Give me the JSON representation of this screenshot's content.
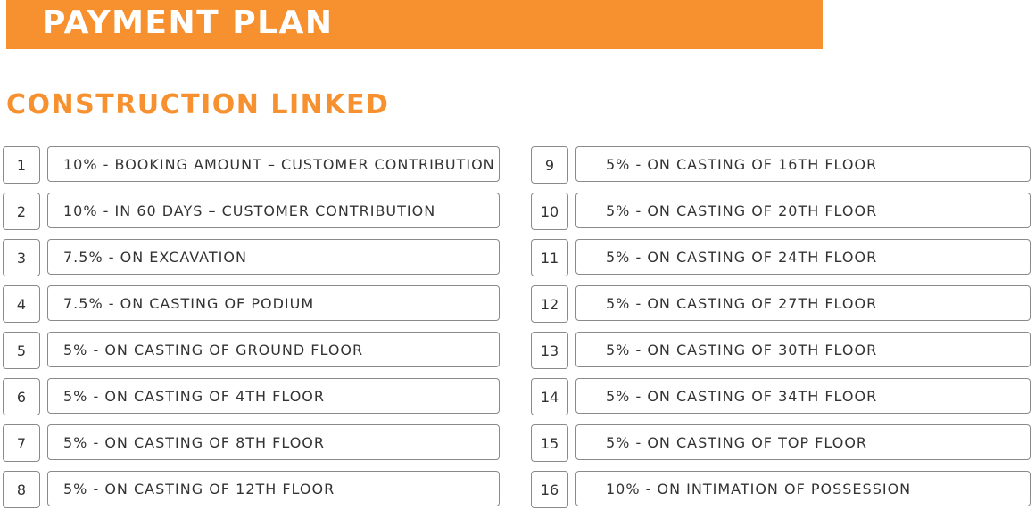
{
  "header": {
    "title": "PAYMENT PLAN",
    "subtitle": "CONSTRUCTION LINKED"
  },
  "colors": {
    "accent": "#f7902e",
    "border": "#8a8a8a",
    "text": "#333333"
  },
  "plan_left": [
    {
      "num": "1",
      "text": "10% - BOOKING AMOUNT – CUSTOMER CONTRIBUTION"
    },
    {
      "num": "2",
      "text": "10% - IN 60 DAYS – CUSTOMER CONTRIBUTION"
    },
    {
      "num": "3",
      "text": "7.5% - ON EXCAVATION"
    },
    {
      "num": "4",
      "text": "7.5% - ON CASTING OF PODIUM"
    },
    {
      "num": "5",
      "text": "5% - ON CASTING OF GROUND FLOOR"
    },
    {
      "num": "6",
      "text": "5% - ON CASTING OF 4TH FLOOR"
    },
    {
      "num": "7",
      "text": "5% - ON CASTING OF 8TH FLOOR"
    },
    {
      "num": "8",
      "text": "5% - ON CASTING OF 12TH FLOOR"
    }
  ],
  "plan_right": [
    {
      "num": "9",
      "text": "5% - ON CASTING OF 16TH FLOOR"
    },
    {
      "num": "10",
      "text": "5% - ON CASTING OF 20TH FLOOR"
    },
    {
      "num": "11",
      "text": "5% - ON CASTING OF 24TH FLOOR"
    },
    {
      "num": "12",
      "text": "5% - ON CASTING OF 27TH FLOOR"
    },
    {
      "num": "13",
      "text": "5% - ON CASTING OF 30TH FLOOR"
    },
    {
      "num": "14",
      "text": "5% - ON CASTING OF 34TH FLOOR"
    },
    {
      "num": "15",
      "text": "5% - ON CASTING OF TOP FLOOR"
    },
    {
      "num": "16",
      "text": "10% - ON INTIMATION OF POSSESSION"
    }
  ]
}
